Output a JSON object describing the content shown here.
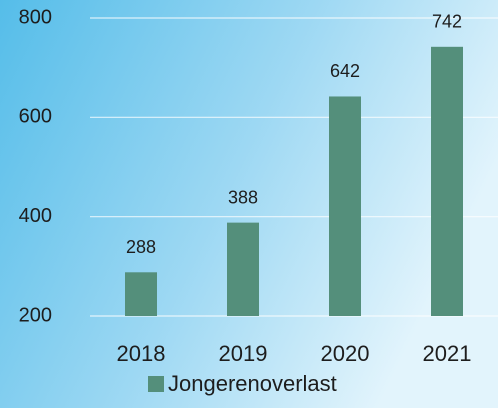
{
  "chart_data": {
    "type": "bar",
    "categories": [
      "2018",
      "2019",
      "2020",
      "2021"
    ],
    "series": [
      {
        "name": "Jongerenoverlast",
        "color": "#548f7b",
        "values": [
          288,
          388,
          642,
          742
        ]
      }
    ],
    "ylim": [
      200,
      800
    ],
    "yticks": [
      200,
      400,
      600,
      800
    ],
    "grid": true,
    "legend": "bottom"
  }
}
